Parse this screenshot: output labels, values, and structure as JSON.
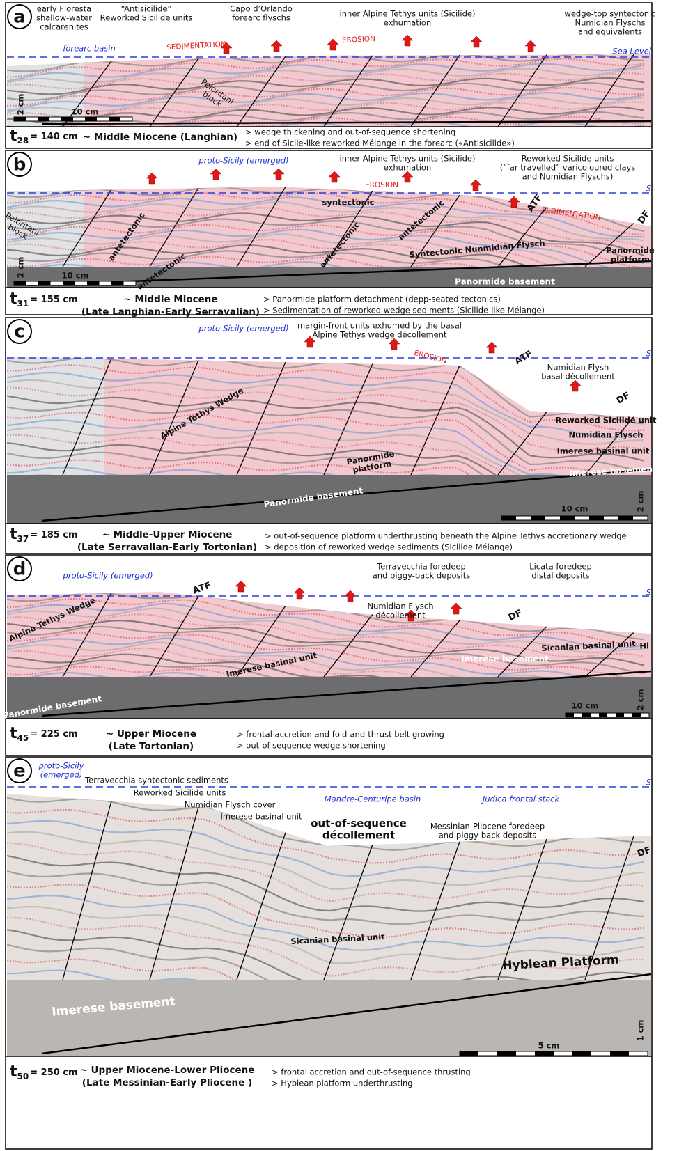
{
  "panels": [
    {
      "letter": "a",
      "labels": [
        {
          "lines": [
            "early Floresta",
            "shallow-water",
            "calcarenites"
          ]
        },
        {
          "lines": [
            "“Antisicilide”",
            "Reworked Sicilide units"
          ]
        },
        {
          "lines": [
            "Capo d’Orlando",
            "forearc flyschs"
          ]
        },
        {
          "lines": [
            "inner Alpine Tethys units (Sicilide)",
            "exhumation"
          ]
        },
        {
          "lines": [
            "wedge-top syntectonic",
            "Numidian Flyschs",
            "and equivalents"
          ]
        },
        {
          "lines": [
            "forearc basin"
          ]
        },
        {
          "lines": [
            "SEDIMENTATION"
          ]
        },
        {
          "lines": [
            "EROSION"
          ]
        },
        {
          "lines": [
            "Sea Level"
          ]
        },
        {
          "lines": [
            "Peloritani",
            "block"
          ]
        },
        {
          "lines": [
            "2 cm"
          ]
        },
        {
          "lines": [
            "10 cm"
          ]
        }
      ],
      "time": {
        "t": "t",
        "n": "28",
        "rest": "= 140 cm"
      },
      "age": [
        "~ Middle Miocene (Langhian)"
      ],
      "notes": [
        "> wedge thickening and out-of-sequence shortening",
        "> end of Sicile-like reworked Mélange in the forearc («Antisicilide»)"
      ]
    },
    {
      "letter": "b",
      "labels": [
        {
          "lines": [
            "proto-Sicily (emerged)"
          ]
        },
        {
          "lines": [
            "inner Alpine Tethys units (Sicilide)",
            "exhumation"
          ]
        },
        {
          "lines": [
            "Reworked Sicilide units",
            "(“far travelled” varicoloured clays",
            "and Numidian Flyschs)"
          ]
        },
        {
          "lines": [
            "S"
          ]
        },
        {
          "lines": [
            "EROSION"
          ]
        },
        {
          "lines": [
            "SEDIMENTATION"
          ]
        },
        {
          "lines": [
            "ATF"
          ]
        },
        {
          "lines": [
            "DF"
          ]
        },
        {
          "lines": [
            "syntectonic"
          ]
        },
        {
          "lines": [
            "antetectonic"
          ]
        },
        {
          "lines": [
            "antetectonic"
          ]
        },
        {
          "lines": [
            "antetectonic"
          ]
        },
        {
          "lines": [
            "antetectonic"
          ]
        },
        {
          "lines": [
            "Peloritani",
            "block"
          ]
        },
        {
          "lines": [
            "Syntectonic Nunmidian Flysch"
          ]
        },
        {
          "lines": [
            "Panormide",
            "platform"
          ]
        },
        {
          "lines": [
            "Panormide basement"
          ]
        },
        {
          "lines": [
            "2 cm"
          ]
        },
        {
          "lines": [
            "10 cm"
          ]
        }
      ],
      "time": {
        "t": "t",
        "n": "31",
        "rest": "= 155 cm"
      },
      "age": [
        "~ Middle Miocene",
        "(Late Langhian-Early Serravalian)"
      ],
      "notes": [
        "> Panormide platform detachment (depp-seated tectonics)",
        "> Sedimentation of reworked wedge sediments (Sicilide-like Mélange)"
      ]
    },
    {
      "letter": "c",
      "labels": [
        {
          "lines": [
            "proto-Sicily (emerged)"
          ]
        },
        {
          "lines": [
            "margin-front units exhumed by the basal",
            "Alpine Tethys wedge décollement"
          ]
        },
        {
          "lines": [
            "S"
          ]
        },
        {
          "lines": [
            "EROSION"
          ]
        },
        {
          "lines": [
            "ATF"
          ]
        },
        {
          "lines": [
            "Numidian Flysh",
            "basal décollement"
          ]
        },
        {
          "lines": [
            "DF"
          ]
        },
        {
          "lines": [
            "Alpine  Tethys  Wedge"
          ]
        },
        {
          "lines": [
            "Reworked Sicilide unit"
          ]
        },
        {
          "lines": [
            "Numidian Flysch"
          ]
        },
        {
          "lines": [
            "Imerese basinal unit"
          ]
        },
        {
          "lines": [
            "Panormide",
            "platform"
          ]
        },
        {
          "lines": [
            "Imerese basement"
          ]
        },
        {
          "lines": [
            "Panormide basement"
          ]
        },
        {
          "lines": [
            "2 cm"
          ]
        },
        {
          "lines": [
            "10 cm"
          ]
        }
      ],
      "time": {
        "t": "t",
        "n": "37",
        "rest": "= 185 cm"
      },
      "age": [
        "~ Middle-Upper Miocene",
        "(Late Serravalian-Early Tortonian)"
      ],
      "notes": [
        "> out-of-sequence platform underthrusting beneath the Alpine Tethys accretionary wedge",
        "> deposition of reworked wedge sediments (Sicilide Mélange)"
      ]
    },
    {
      "letter": "d",
      "labels": [
        {
          "lines": [
            "proto-Sicily (emerged)"
          ]
        },
        {
          "lines": [
            "ATF"
          ]
        },
        {
          "lines": [
            "Terravecchia foredeep",
            "and piggy-back deposits"
          ]
        },
        {
          "lines": [
            "Licata foredeep",
            "distal deposits"
          ]
        },
        {
          "lines": [
            "S"
          ]
        },
        {
          "lines": [
            "Numidian Flysch",
            "décollement"
          ]
        },
        {
          "lines": [
            "DF"
          ]
        },
        {
          "lines": [
            "Alpine  Tethys  Wedge"
          ]
        },
        {
          "lines": [
            "Sicanian basinal unit"
          ]
        },
        {
          "lines": [
            "Hl"
          ]
        },
        {
          "lines": [
            "Imerese    basinal    unit"
          ]
        },
        {
          "lines": [
            "Imerese basement"
          ]
        },
        {
          "lines": [
            "Panormide basement"
          ]
        },
        {
          "lines": [
            "10 cm"
          ]
        },
        {
          "lines": [
            "2 cm"
          ]
        }
      ],
      "time": {
        "t": "t",
        "n": "45",
        "rest": "= 225 cm"
      },
      "age": [
        "~ Upper Miocene",
        "(Late Tortonian)"
      ],
      "notes": [
        "> frontal accretion and fold-and-thrust belt growing",
        "> out-of-sequence wedge shortening"
      ]
    },
    {
      "letter": "e",
      "labels": [
        {
          "lines": [
            "proto-Sicily",
            "(emerged)"
          ]
        },
        {
          "lines": [
            "Terravecchia syntectonic sediments"
          ]
        },
        {
          "lines": [
            "Reworked Sicilide units"
          ]
        },
        {
          "lines": [
            "Numidian Flysch cover"
          ]
        },
        {
          "lines": [
            "Imerese basinal unit"
          ]
        },
        {
          "lines": [
            "S"
          ]
        },
        {
          "lines": [
            "Mandre-Centuripe basin"
          ]
        },
        {
          "lines": [
            "Judica frontal stack"
          ]
        },
        {
          "lines": [
            "out-of-sequence",
            "décollement"
          ]
        },
        {
          "lines": [
            "Messinian-Pliocene foredeep",
            "and piggy-back deposits"
          ]
        },
        {
          "lines": [
            "DF"
          ]
        },
        {
          "lines": [
            "Sicanian basinal unit"
          ]
        },
        {
          "lines": [
            "Hyblean Platform"
          ]
        },
        {
          "lines": [
            "Imerese basement"
          ]
        },
        {
          "lines": [
            "1 cm"
          ]
        },
        {
          "lines": [
            "5 cm"
          ]
        }
      ],
      "time": {
        "t": "t",
        "n": "50",
        "rest": "= 250 cm"
      },
      "age": [
        "~ Upper Miocene-Lower Pliocene",
        "(Late Messinian-Early Pliocene )"
      ],
      "notes": [
        "> frontal accretion and out-of-sequence thrusting",
        "> Hyblean platform underthrusting"
      ]
    }
  ]
}
